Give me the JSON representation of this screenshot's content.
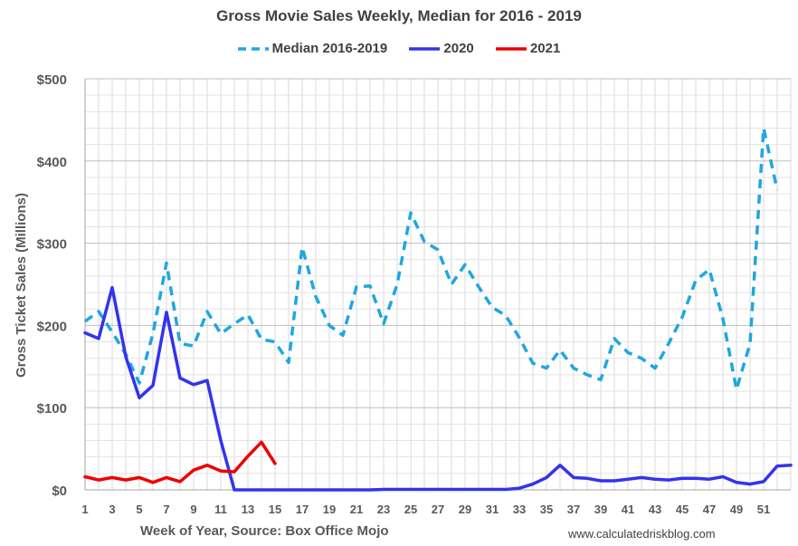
{
  "chart_data": {
    "type": "line",
    "title": "Gross Movie Sales Weekly, Median for 2016 - 2019",
    "xlabel": "Week of Year, Source: Box Office Mojo",
    "ylabel": "Gross Ticket Sales (Millions)",
    "watermark": "www.calculatedriskblog.com",
    "xlim": [
      1,
      53
    ],
    "ylim": [
      0,
      500
    ],
    "x_ticks": [
      "1",
      "3",
      "5",
      "7",
      "9",
      "11",
      "13",
      "15",
      "17",
      "19",
      "21",
      "23",
      "25",
      "27",
      "29",
      "31",
      "33",
      "35",
      "37",
      "39",
      "41",
      "43",
      "45",
      "47",
      "49",
      "51"
    ],
    "y_ticks": [
      {
        "value": 0,
        "label": "$0"
      },
      {
        "value": 100,
        "label": "$100"
      },
      {
        "value": 200,
        "label": "$200"
      },
      {
        "value": 300,
        "label": "$300"
      },
      {
        "value": 400,
        "label": "$400"
      },
      {
        "value": 500,
        "label": "$500"
      }
    ],
    "grid": true,
    "legend_position": "top",
    "series": [
      {
        "name": "Median 2016-2019",
        "color": "#1FA7E0",
        "style": "dashed",
        "x": [
          1,
          2,
          3,
          4,
          5,
          6,
          7,
          8,
          9,
          10,
          11,
          12,
          13,
          14,
          15,
          16,
          17,
          18,
          19,
          20,
          21,
          22,
          23,
          24,
          25,
          26,
          27,
          28,
          29,
          30,
          31,
          32,
          33,
          34,
          35,
          36,
          37,
          38,
          39,
          40,
          41,
          42,
          43,
          44,
          45,
          46,
          47,
          48,
          49,
          50,
          51,
          52
        ],
        "values": [
          205,
          217,
          192,
          165,
          130,
          190,
          276,
          178,
          175,
          217,
          190,
          202,
          213,
          183,
          180,
          155,
          295,
          235,
          200,
          188,
          247,
          248,
          202,
          250,
          337,
          302,
          292,
          250,
          274,
          247,
          222,
          212,
          185,
          154,
          148,
          170,
          148,
          140,
          134,
          184,
          167,
          160,
          148,
          178,
          210,
          255,
          268,
          208,
          122,
          178,
          440,
          365
        ]
      },
      {
        "name": "2020",
        "color": "#3333EE",
        "style": "solid",
        "x": [
          1,
          2,
          3,
          4,
          5,
          6,
          7,
          8,
          9,
          10,
          11,
          12,
          13,
          14,
          15,
          16,
          17,
          18,
          19,
          20,
          21,
          22,
          23,
          24,
          25,
          26,
          27,
          28,
          29,
          30,
          31,
          32,
          33,
          34,
          35,
          36,
          37,
          38,
          39,
          40,
          41,
          42,
          43,
          44,
          45,
          46,
          47,
          48,
          49,
          50,
          51,
          52,
          53
        ],
        "values": [
          191,
          184,
          246,
          162,
          112,
          127,
          216,
          136,
          128,
          133,
          60,
          0,
          0,
          0,
          0,
          0,
          0,
          0,
          0,
          0,
          0,
          0,
          0.5,
          0.5,
          0.5,
          0.5,
          0.5,
          0.5,
          0.5,
          0.5,
          0.5,
          0.5,
          2,
          7,
          15,
          30,
          15,
          14,
          11,
          11,
          13,
          15,
          13,
          12,
          14,
          14,
          13,
          16,
          9,
          7,
          10,
          29,
          30
        ]
      },
      {
        "name": "2021",
        "color": "#EE0000",
        "style": "solid",
        "x": [
          1,
          2,
          3,
          4,
          5,
          6,
          7,
          8,
          9,
          10,
          11,
          12,
          13,
          14,
          15
        ],
        "values": [
          16,
          12,
          15,
          12,
          15,
          9,
          15,
          10,
          24,
          30,
          23,
          22,
          41,
          58,
          32
        ]
      }
    ]
  }
}
